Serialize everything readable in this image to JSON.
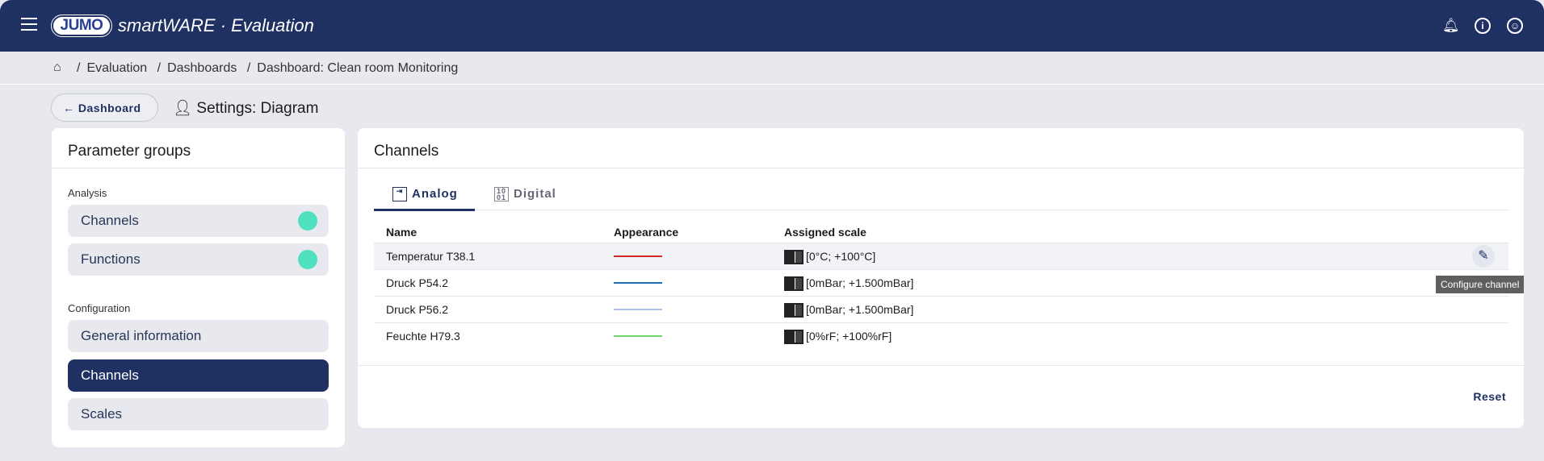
{
  "header": {
    "logo": "JUMO",
    "title": "smartWARE · Evaluation",
    "icons": [
      "menu-icon",
      "bell-icon",
      "info-icon",
      "account-icon"
    ]
  },
  "breadcrumb": [
    "Evaluation",
    "Dashboards",
    "Dashboard: Clean room Monitoring"
  ],
  "back_button": "Dashboard",
  "settings_title": "Settings: Diagram",
  "parameter_groups": {
    "title": "Parameter groups",
    "analysis_label": "Analysis",
    "analysis": [
      {
        "label": "Channels"
      },
      {
        "label": "Functions"
      }
    ],
    "configuration_label": "Configuration",
    "configuration": [
      {
        "label": "General information"
      },
      {
        "label": "Channels",
        "selected": true
      },
      {
        "label": "Scales"
      }
    ]
  },
  "channels": {
    "title": "Channels",
    "tabs": [
      {
        "label": "Analog",
        "active": true
      },
      {
        "label": "Digital"
      }
    ],
    "columns": [
      "Name",
      "Appearance",
      "Assigned scale"
    ],
    "rows": [
      {
        "name": "Temperatur T38.1",
        "color": "#d32a2a",
        "scale": "[0°C; +100°C]"
      },
      {
        "name": "Druck P54.2",
        "color": "#1f6fb5",
        "scale": "[0mBar; +1.500mBar]"
      },
      {
        "name": "Druck P56.2",
        "color": "#a9c4ec",
        "scale": "[0mBar; +1.500mBar]"
      },
      {
        "name": "Feuchte H79.3",
        "color": "#6fd66a",
        "scale": "[0%rF; +100%rF]"
      }
    ],
    "tooltip": "Configure channel",
    "reset": "Reset"
  }
}
